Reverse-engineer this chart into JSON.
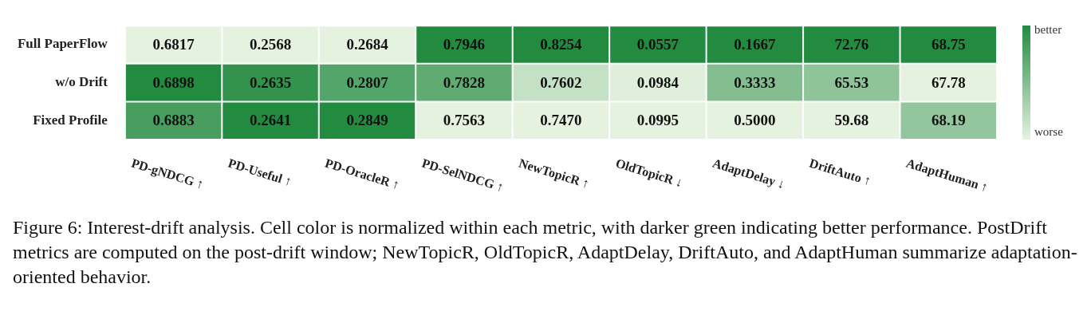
{
  "chart_data": {
    "type": "heatmap",
    "categories": [
      "PD-gNDCG ↑",
      "PD-Useful ↑",
      "PD-OracleR ↑",
      "PD-SelNDCG ↑",
      "NewTopicR ↑",
      "OldTopicR ↓",
      "AdaptDelay ↓",
      "DriftAuto ↑",
      "AdaptHuman ↑"
    ],
    "y_categories": [
      "Full PaperFlow",
      "w/o Drift",
      "Fixed Profile"
    ],
    "cells": [
      [
        0.6817,
        0.2568,
        0.2684,
        0.7946,
        0.8254,
        0.0557,
        0.1667,
        72.76,
        68.75
      ],
      [
        0.6898,
        0.2635,
        0.2807,
        0.7828,
        0.7602,
        0.0984,
        0.3333,
        65.53,
        67.78
      ],
      [
        0.6883,
        0.2641,
        0.2849,
        0.7563,
        0.747,
        0.0995,
        0.5,
        59.68,
        68.19
      ]
    ],
    "cell_labels": [
      [
        "0.6817",
        "0.2568",
        "0.2684",
        "0.7946",
        "0.8254",
        "0.0557",
        "0.1667",
        "72.76",
        "68.75"
      ],
      [
        "0.6898",
        "0.2635",
        "0.2807",
        "0.7828",
        "0.7602",
        "0.0984",
        "0.3333",
        "65.53",
        "67.78"
      ],
      [
        "0.6883",
        "0.2641",
        "0.2849",
        "0.7563",
        "0.7470",
        "0.0995",
        "0.5000",
        "59.68",
        "68.19"
      ]
    ],
    "annotations": [
      "better",
      "worse",
      "Figure 6: Interest-drift analysis. Cell color is normalized within each metric, with darker green indicating better performance. PostDrift metrics are computed on the post-drift window; NewTopicR, OldTopicR, AdaptDelay, DriftAuto, and AdaptHuman summarize adaptation-oriented behavior."
    ]
  }
}
